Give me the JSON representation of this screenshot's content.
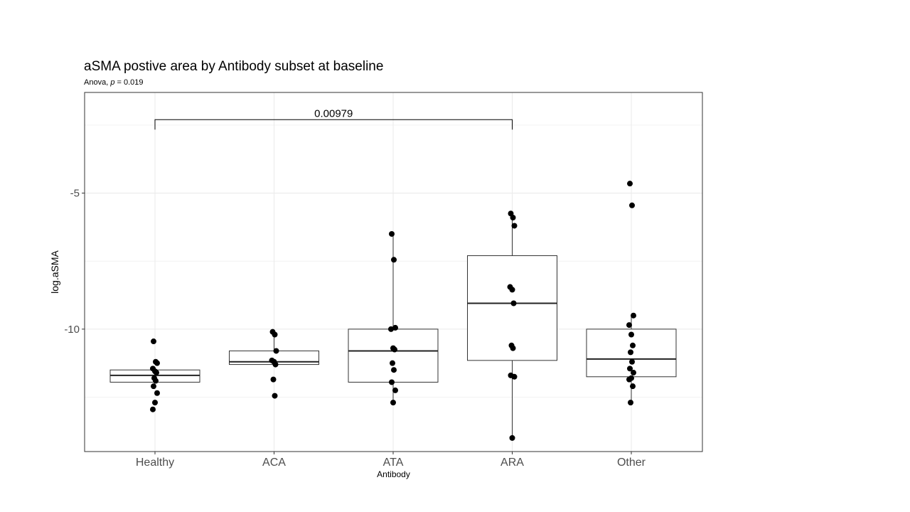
{
  "chart_data": {
    "type": "box",
    "title": "aSMA postive area by Antibody subset at baseline",
    "subtitle_prefix": "Anova, ",
    "subtitle_p": "p",
    "subtitle_suffix": " = 0.019",
    "xlabel": "Antibody",
    "ylabel": "log.aSMA",
    "ylim": [
      -14.5,
      -1.3
    ],
    "yticks": [
      -5,
      -10
    ],
    "ytick_labels": [
      "-5",
      "-10"
    ],
    "categories": [
      "Healthy",
      "ACA",
      "ATA",
      "ARA",
      "Other"
    ],
    "boxes": [
      {
        "q1": -11.95,
        "median": -11.7,
        "q3": -11.5,
        "whisker_low": -11.95,
        "whisker_high": -11.5
      },
      {
        "q1": -11.3,
        "median": -11.2,
        "q3": -10.8,
        "whisker_low": -11.3,
        "whisker_high": -10.1
      },
      {
        "q1": -11.95,
        "median": -10.8,
        "q3": -10.0,
        "whisker_low": -12.7,
        "whisker_high": -6.5
      },
      {
        "q1": -11.15,
        "median": -9.05,
        "q3": -7.3,
        "whisker_low": -14.0,
        "whisker_high": -5.7
      },
      {
        "q1": -11.75,
        "median": -11.1,
        "q3": -10.0,
        "whisker_low": -12.7,
        "whisker_high": -9.5
      }
    ],
    "points": [
      [
        -10.45,
        -11.2,
        -11.25,
        -11.45,
        -11.55,
        -11.6,
        -11.8,
        -11.9,
        -12.1,
        -12.35,
        -12.7,
        -12.95
      ],
      [
        -10.1,
        -10.2,
        -10.8,
        -11.15,
        -11.2,
        -11.3,
        -11.85,
        -12.45
      ],
      [
        -6.5,
        -7.45,
        -9.95,
        -10.0,
        -10.7,
        -10.75,
        -11.25,
        -11.5,
        -11.95,
        -12.25,
        -12.7
      ],
      [
        -5.75,
        -5.9,
        -6.2,
        -8.45,
        -8.55,
        -9.05,
        -10.6,
        -10.7,
        -11.7,
        -11.75,
        -14.0
      ],
      [
        -4.65,
        -5.45,
        -9.5,
        -9.85,
        -10.2,
        -10.6,
        -10.85,
        -11.2,
        -11.45,
        -11.6,
        -11.8,
        -11.85,
        -12.1,
        -12.7
      ]
    ],
    "comparison": {
      "from": "Healthy",
      "to": "ARA",
      "label": "0.00979",
      "y": -2.3
    },
    "grid": true
  }
}
